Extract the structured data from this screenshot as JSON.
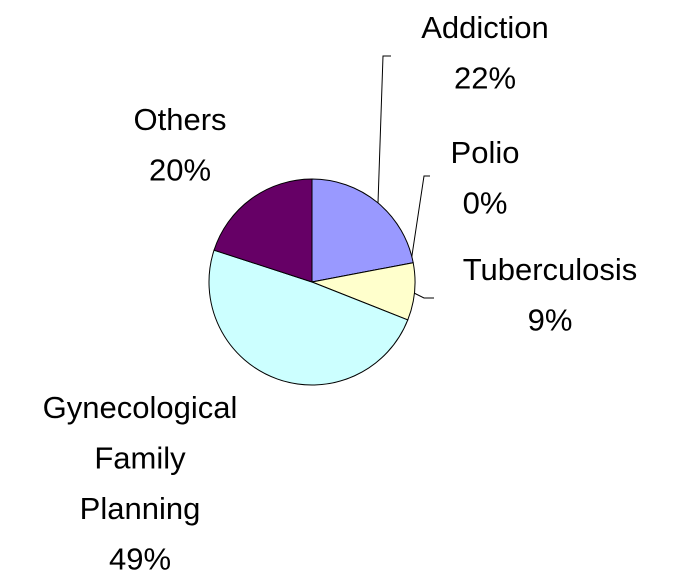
{
  "chart_data": {
    "type": "pie",
    "categories": [
      "Addiction",
      "Polio",
      "Tuberculosis",
      "Gynecological Family Planning",
      "Others"
    ],
    "values": [
      22,
      0,
      9,
      49,
      20
    ],
    "value_labels": [
      "22%",
      "0%",
      "9%",
      "49%",
      "20%"
    ],
    "colors": [
      "#9999ff",
      "#993366",
      "#ffffcc",
      "#ccffff",
      "#660066"
    ]
  }
}
